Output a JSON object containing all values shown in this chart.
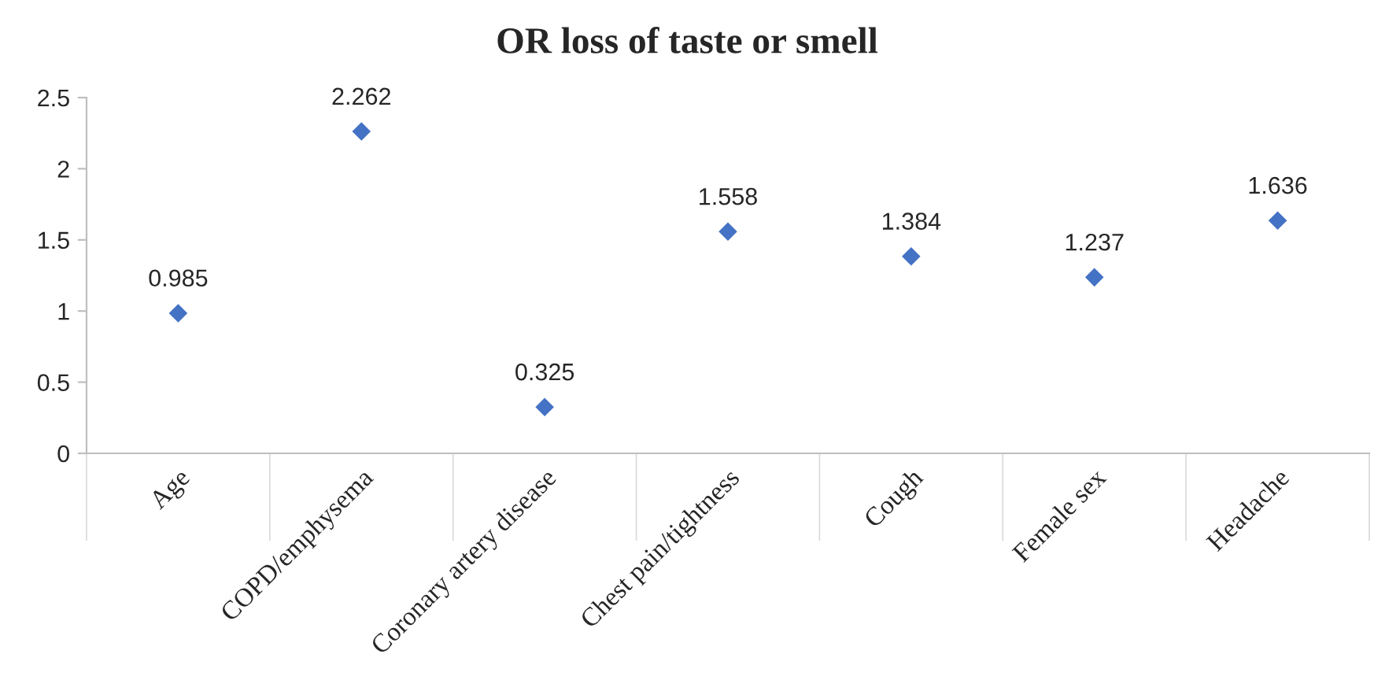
{
  "chart_data": {
    "type": "scatter",
    "title": "OR loss of taste or smell",
    "categories": [
      "Age",
      "COPD/emphysema",
      "Coronary artery disease",
      "Chest pain/tightness",
      "Cough",
      "Female sex",
      "Headache"
    ],
    "series": [
      {
        "color": "#4472c4",
        "values": [
          0.985,
          2.262,
          0.325,
          1.558,
          1.384,
          1.237,
          1.636
        ]
      }
    ],
    "ylim": [
      0,
      2.5
    ],
    "yticks": [
      0,
      {
        "value": 0.5,
        "label": "0.5"
      },
      1,
      {
        "value": 1.5,
        "label": "1.5"
      },
      2,
      {
        "value": 2.5,
        "label": "2.5"
      }
    ],
    "marker": "diamond",
    "data_labels": true,
    "grid": false
  }
}
